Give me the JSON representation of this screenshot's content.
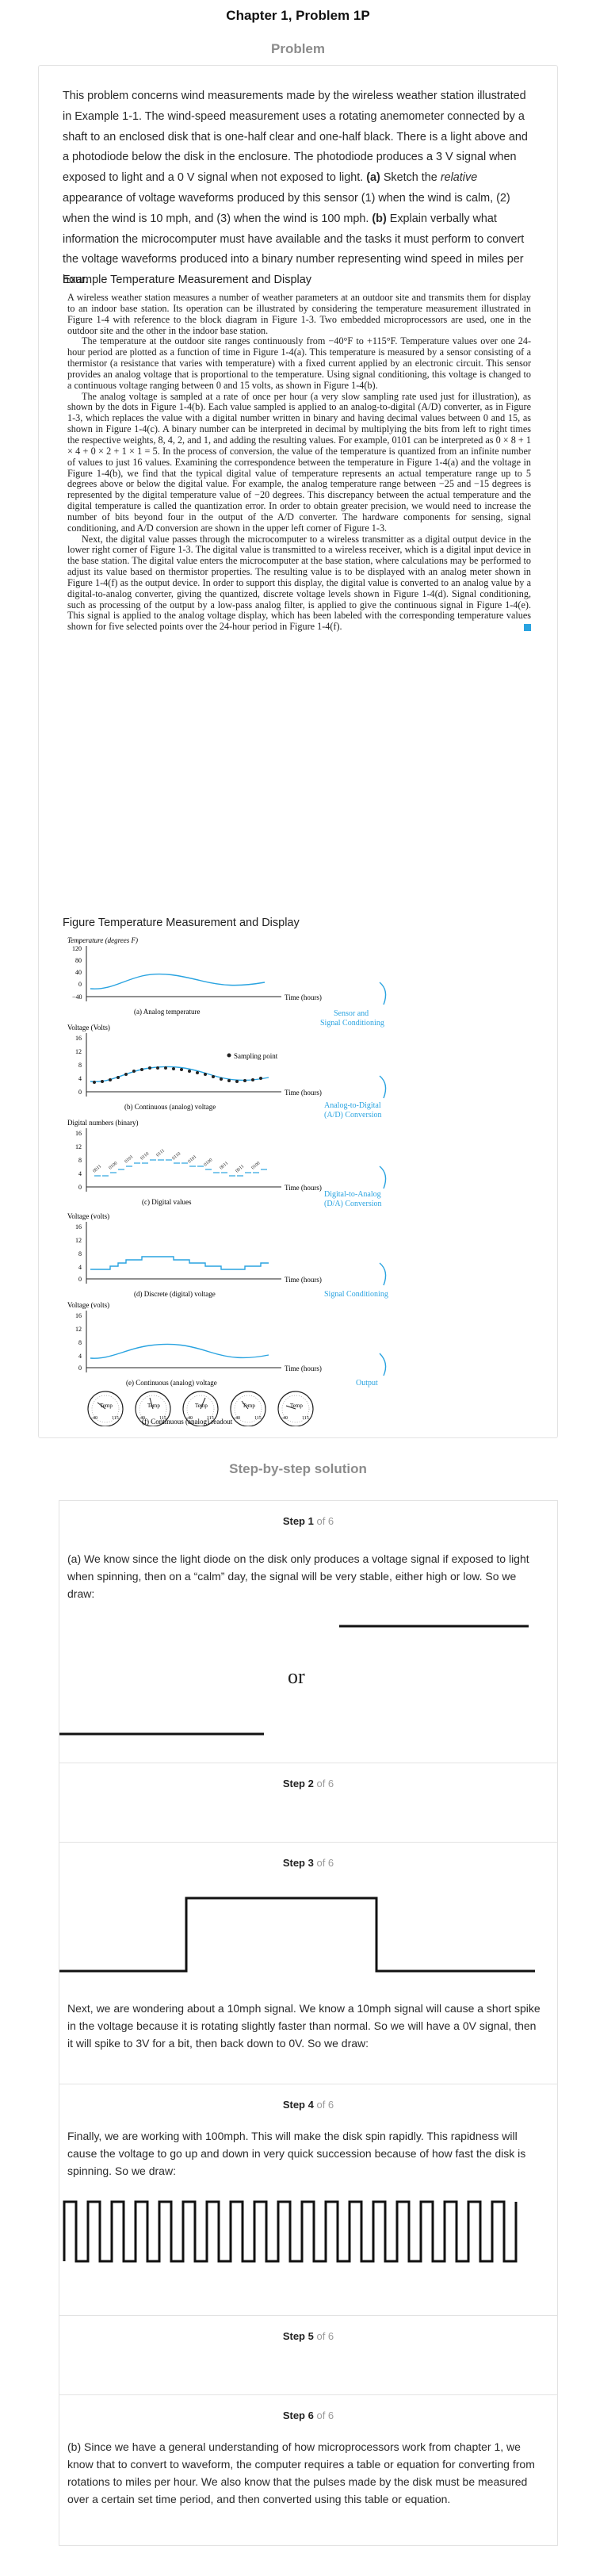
{
  "page": {
    "title": "Chapter 1, Problem 1P",
    "problem_heading": "Problem",
    "solution_heading": "Step-by-step solution"
  },
  "problem": {
    "intro_1": "This problem concerns wind measurements made by the wireless weather station illustrated in Example 1-1. The wind-speed measurement uses a rotating anemometer connected by a shaft to an enclosed disk that is one-half clear and one-half black. There is a light above and a photodiode below the disk in the enclosure. The photodiode produces a 3 V signal when exposed to light and a 0 V signal when not exposed to light.",
    "part_a": "(a)",
    "intro_2": "Sketch the",
    "relative": "relative",
    "intro_3": "appearance of voltage waveforms produced by this sensor (1) when the wind is calm, (2) when the wind is 10 mph, and (3) when the wind is 100 mph.",
    "part_b": "(b)",
    "intro_4": "Explain verbally what information the microcomputer must have available and the tasks it must perform to convert the voltage waveforms produced into a binary number representing wind speed in miles per hour.",
    "example_caption": "Example Temperature Measurement and Display",
    "figure_caption": "Figure Temperature Measurement and Display",
    "book_paragraphs": [
      "A wireless weather station measures a number of weather parameters at an outdoor site and transmits them for display to an indoor base station. Its operation can be illustrated by considering the temperature measurement illustrated in Figure 1-4 with reference to the block diagram in Figure 1-3. Two embedded microprocessors are used, one in the outdoor site and the other in the indoor base station.",
      "The temperature at the outdoor site ranges continuously from −40°F to +115°F. Temperature values over one 24-hour period are plotted as a function of time in Figure 1-4(a). This temperature is measured by a sensor consisting of a thermistor (a resistance that varies with temperature) with a fixed current applied by an electronic circuit. This sensor provides an analog voltage that is proportional to the temperature. Using signal conditioning, this voltage is changed to a continuous voltage ranging between 0 and 15 volts, as shown in Figure 1-4(b).",
      "The analog voltage is sampled at a rate of once per hour (a very slow sampling rate used just for illustration), as shown by the dots in Figure 1-4(b). Each value sampled is applied to an analog-to-digital (A/D) converter, as in Figure 1-3, which replaces the value with a digital number written in binary and having decimal values between 0 and 15, as shown in Figure 1-4(c). A binary number can be interpreted in decimal by multiplying the bits from left to right times the respective weights, 8, 4, 2, and 1, and adding the resulting values. For example, 0101 can be interpreted as 0 × 8 + 1 × 4 + 0 × 2 + 1 × 1 = 5. In the process of conversion, the value of the temperature is quantized from an infinite number of values to just 16 values. Examining the correspondence between the temperature in Figure 1-4(a) and the voltage in Figure 1-4(b), we find that the typical digital value of temperature represents an actual temperature range up to 5 degrees above or below the digital value. For example, the analog temperature range between −25 and −15 degrees is represented by the digital temperature value of −20 degrees. This discrepancy between the actual temperature and the digital temperature is called the quantization error. In order to obtain greater precision, we would need to increase the number of bits beyond four in the output of the A/D converter. The hardware components for sensing, signal conditioning, and A/D conversion are shown in the upper left corner of Figure 1-3.",
      "Next, the digital value passes through the microcomputer to a wireless transmitter as a digital output device in the lower right corner of Figure 1-3. The digital value is transmitted to a wireless receiver, which is a digital input device in the base station. The digital value enters the microcomputer at the base station, where calculations may be performed to adjust its value based on thermistor properties. The resulting value is to be displayed with an analog meter shown in Figure 1-4(f) as the output device. In order to support this display, the digital value is converted to an analog value by a digital-to-analog converter, giving the quantized, discrete voltage levels shown in Figure 1-4(d). Signal conditioning, such as processing of the output by a low-pass analog filter, is applied to give the continuous signal in Figure 1-4(e). This signal is applied to the analog voltage display, which has been labeled with the corresponding temperature values shown for five selected points over the 24-hour period in Figure 1-4(f)."
    ]
  },
  "figure": {
    "panel_a": {
      "ylabel": "Temperature (degrees F)",
      "yticks": [
        "120",
        "80",
        "40",
        "0",
        "−40"
      ],
      "caption": "(a) Analog temperature"
    },
    "panel_b": {
      "ylabel": "Voltage (Volts)",
      "yticks": [
        "16",
        "12",
        "8",
        "4",
        "0"
      ],
      "legend": "Sampling point",
      "caption": "(b) Continuous (analog) voltage"
    },
    "panel_c": {
      "ylabel": "Digital numbers (binary)",
      "yticks": [
        "16",
        "12",
        "8",
        "4",
        "0"
      ],
      "caption": "(c) Digital values"
    },
    "panel_d": {
      "ylabel": "Voltage (volts)",
      "yticks": [
        "16",
        "12",
        "8",
        "4",
        "0"
      ],
      "caption": "(d) Discrete (digital) voltage"
    },
    "panel_e": {
      "ylabel": "Voltage (volts)",
      "yticks": [
        "16",
        "12",
        "8",
        "4",
        "0"
      ],
      "caption": "(e) Continuous (analog) voltage"
    },
    "panel_f": {
      "caption": "(f) Continuous (analog) readout",
      "dial_label": "Temp",
      "dial_low": "-40",
      "dial_high": "115"
    },
    "xticks": [
      "0",
      "4",
      "8",
      "12",
      "16",
      "20",
      "24"
    ],
    "xlabel": "Time (hours)",
    "arrows": [
      "Sensor and Signal Conditioning",
      "Analog-to-Digital (A/D) Conversion",
      "Digital-to-Analog (D/A) Conversion",
      "Signal Conditioning",
      "Output"
    ],
    "arrow_color": "#29a3e0",
    "trace_color": "#29a3e0"
  },
  "steps": [
    {
      "label": "Step 1",
      "of": "of 6",
      "text": "(a) We know since the light diode on the disk only produces a voltage signal if exposed to light when spinning, then on a “calm” day, the signal will be very stable, either high or low. So we draw:",
      "or": "or"
    },
    {
      "label": "Step 2",
      "of": "of 6"
    },
    {
      "label": "Step 3",
      "of": "of 6",
      "text": "Next, we are wondering about a 10mph signal. We know a 10mph signal will cause a short spike in the voltage because it is rotating slightly faster than normal. So we will have a 0V signal, then it will spike to 3V for a bit, then back down to 0V. So we draw:"
    },
    {
      "label": "Step 4",
      "of": "of 6",
      "text": "Finally, we are working with 100mph. This will make the disk spin rapidly. This rapidness will cause the voltage to go up and down in very quick succession because of how fast the disk is spinning. So we draw:"
    },
    {
      "label": "Step 5",
      "of": "of 6"
    },
    {
      "label": "Step 6",
      "of": "of 6",
      "text": "(b) Since we have a general understanding of how microprocessors work from chapter 1, we know that to convert to waveform, the computer requires a table or equation for converting from rotations to miles per hour. We also know that the pulses made by the disk must be measured over a certain set time period, and then converted using this table or equation."
    }
  ]
}
